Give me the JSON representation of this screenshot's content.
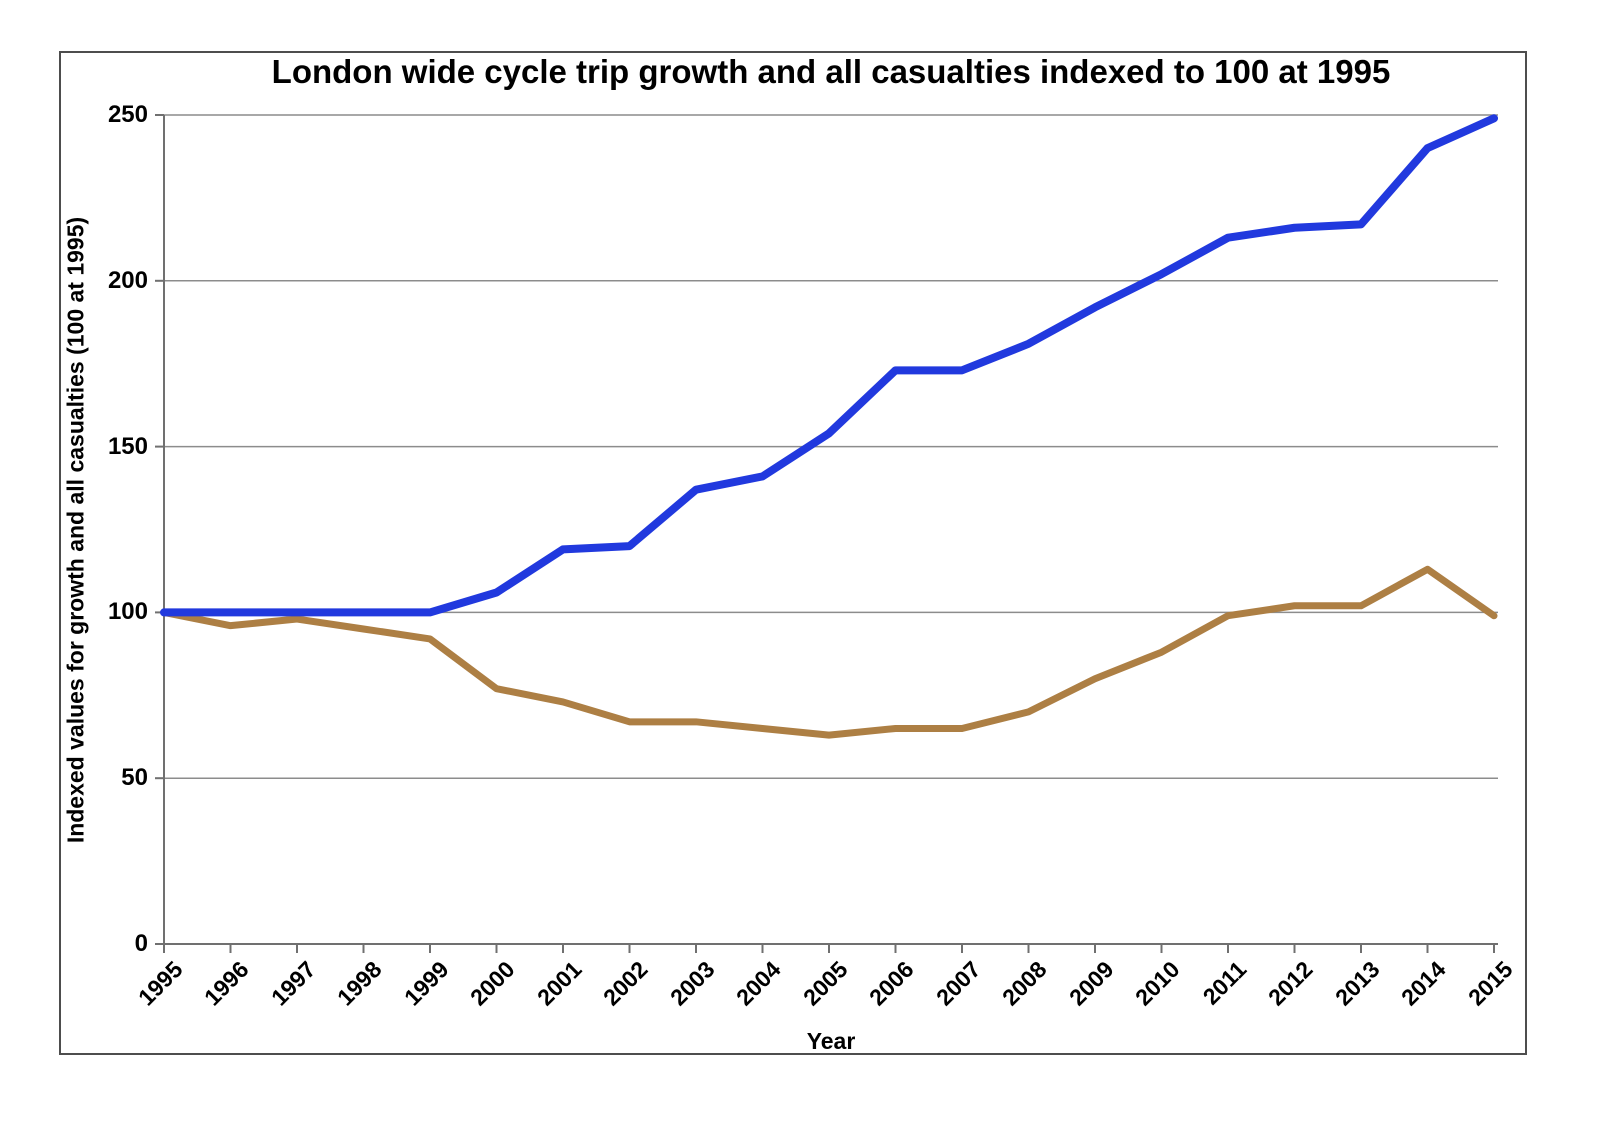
{
  "page": {
    "background": "#ffffff"
  },
  "chart_data": {
    "type": "line",
    "title": "London wide cycle trip growth and all casualties indexed to 100 at 1995",
    "xlabel": "Year",
    "ylabel": "Indexed values for growth and all casualties (100 at 1995)",
    "x": [
      1995,
      1996,
      1997,
      1998,
      1999,
      2000,
      2001,
      2002,
      2003,
      2004,
      2005,
      2006,
      2007,
      2008,
      2009,
      2010,
      2011,
      2012,
      2013,
      2014,
      2015
    ],
    "series": [
      {
        "name": "All casualties",
        "color": "#AD7F44",
        "stroke_width": 7,
        "values": [
          100,
          96,
          98,
          95,
          92,
          77,
          73,
          67,
          67,
          65,
          63,
          65,
          65,
          70,
          80,
          88,
          99,
          102,
          102,
          113,
          99
        ]
      },
      {
        "name": "Cycle trip growth",
        "color": "#2139DE",
        "stroke_width": 8,
        "values": [
          100,
          100,
          100,
          100,
          100,
          106,
          119,
          120,
          137,
          141,
          154,
          173,
          173,
          181,
          192,
          202,
          213,
          216,
          217,
          240,
          249
        ]
      }
    ],
    "ylim": [
      0,
      250
    ],
    "yticks": [
      0,
      50,
      100,
      150,
      200,
      250
    ],
    "grid": "horizontal",
    "legend": "none",
    "colors": {
      "gridline": "#8c8c8c",
      "axis": "#707070",
      "text": "#000000",
      "frame_border": "#4d4d4d"
    }
  }
}
